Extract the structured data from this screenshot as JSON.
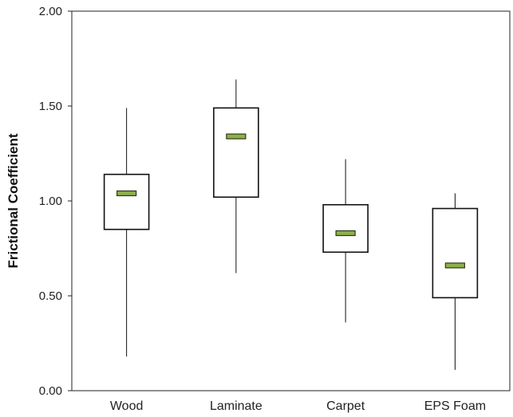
{
  "chart_data": {
    "type": "boxplot",
    "title": "",
    "xlabel": "",
    "ylabel": "Frictional Coefficient",
    "ylim": [
      0,
      2
    ],
    "yticks": [
      "0.00",
      "0.50",
      "1.00",
      "1.50",
      "2.00"
    ],
    "grid": false,
    "categories": [
      "Wood",
      "Laminate",
      "Carpet",
      "EPS Foam"
    ],
    "boxes": [
      {
        "min": 0.18,
        "q1": 0.85,
        "median": 1.04,
        "q3": 1.14,
        "max": 1.49
      },
      {
        "min": 0.62,
        "q1": 1.02,
        "median": 1.34,
        "q3": 1.49,
        "max": 1.64
      },
      {
        "min": 0.36,
        "q1": 0.73,
        "median": 0.83,
        "q3": 0.98,
        "max": 1.22
      },
      {
        "min": 0.11,
        "q1": 0.49,
        "median": 0.66,
        "q3": 0.96,
        "max": 1.04
      }
    ],
    "colors": {
      "box_fill": "#ffffff",
      "box_stroke": "#111111",
      "median_fill": "#8db04a",
      "median_stroke": "#2d3a14"
    }
  }
}
